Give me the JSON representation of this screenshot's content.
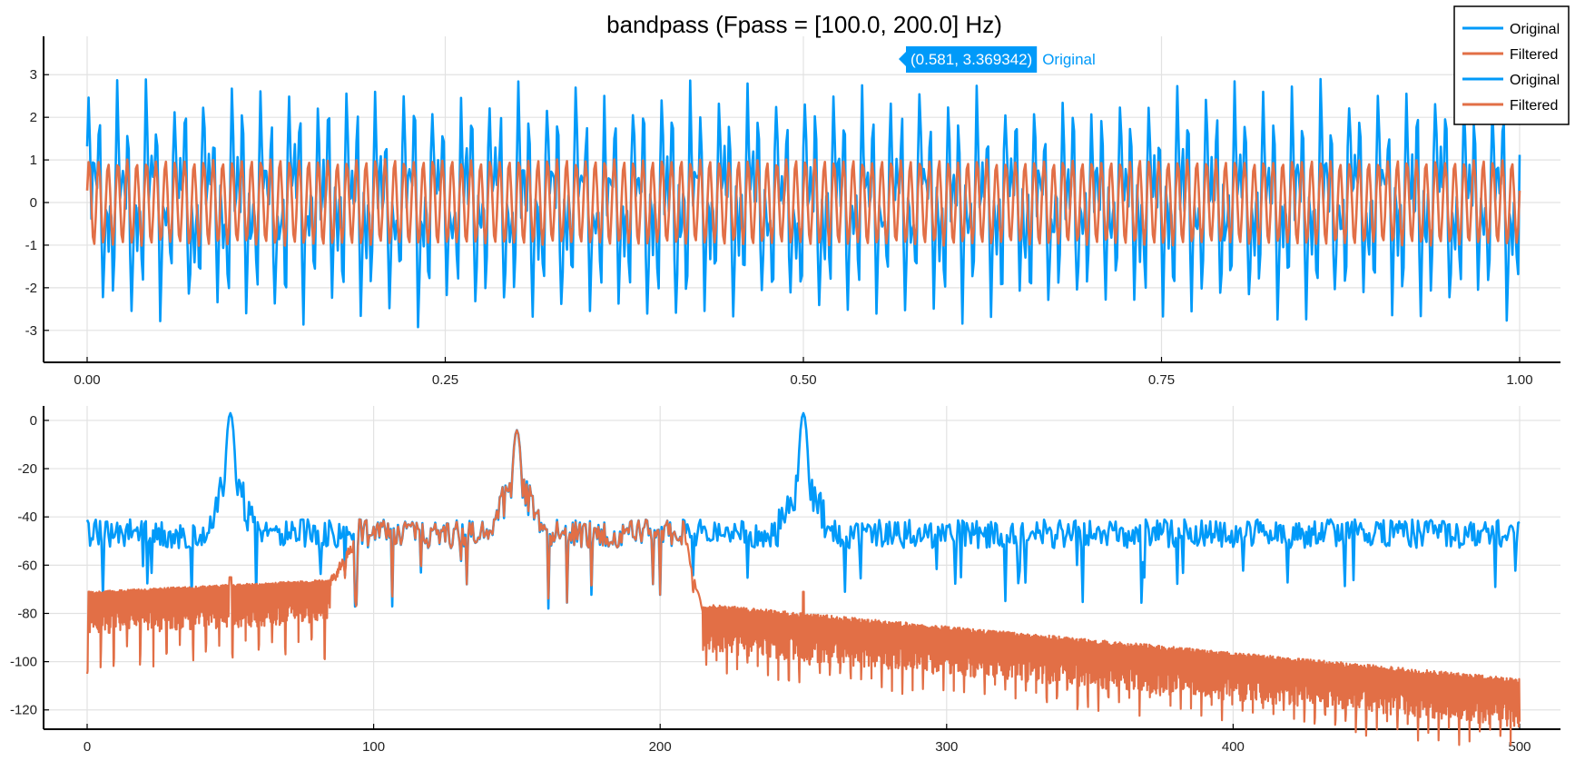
{
  "colors": {
    "original": "#009af9",
    "filtered": "#e26f46",
    "grid": "#e2e2e2",
    "axis": "#000000",
    "tooltip_bg": "#009af9"
  },
  "tooltip": {
    "text": "(0.581, 3.369342)",
    "series": "Original"
  },
  "legend": {
    "placement": "top-right",
    "entries": [
      "Original",
      "Filtered",
      "Original",
      "Filtered"
    ]
  },
  "chart_data": [
    {
      "type": "line",
      "title": "bandpass (Fpass = [100.0, 200.0] Hz)",
      "xlabel": "",
      "ylabel": "",
      "xlim": [
        0,
        1
      ],
      "ylim": [
        -3.75,
        3.9
      ],
      "xticks": [
        "0.00",
        "0.25",
        "0.50",
        "0.75",
        "1.00"
      ],
      "xtick_values": [
        0,
        0.25,
        0.5,
        0.75,
        1
      ],
      "yticks": [
        "3",
        "2",
        "1",
        "0",
        "-1",
        "-2",
        "-3"
      ],
      "ytick_values": [
        3,
        2,
        1,
        0,
        -1,
        -2,
        -3
      ],
      "grid": true,
      "sample_rate": 1000,
      "series": [
        {
          "name": "Original",
          "components_hz": [
            50,
            150,
            250
          ],
          "amplitude_each": 1,
          "peak_abs": 3.6
        },
        {
          "name": "Filtered",
          "components_hz": [
            150
          ],
          "amplitude_each": 1
        }
      ]
    },
    {
      "type": "line",
      "xlim": [
        0,
        500
      ],
      "ylim": [
        -128,
        6
      ],
      "xticks": [
        "0",
        "100",
        "200",
        "300",
        "400",
        "500"
      ],
      "xtick_values": [
        0,
        100,
        200,
        300,
        400,
        500
      ],
      "yticks": [
        "0",
        "-20",
        "-40",
        "-60",
        "-80",
        "-100",
        "-120"
      ],
      "ytick_values": [
        0,
        -20,
        -40,
        -60,
        -80,
        -100,
        -120
      ],
      "grid": true,
      "series": [
        {
          "name": "Original",
          "noise_floor_db": -47,
          "peaks": [
            {
              "x": 50,
              "y": 3
            },
            {
              "x": 150,
              "y": -4
            },
            {
              "x": 250,
              "y": 3
            }
          ]
        },
        {
          "name": "Filtered",
          "passband": [
            95,
            208
          ],
          "stopband_low_db": [
            -72,
            -67
          ],
          "stopband_high_db": [
            -78,
            -109
          ],
          "peaks": [
            {
              "x": 150,
              "y": -4
            }
          ]
        }
      ]
    }
  ]
}
